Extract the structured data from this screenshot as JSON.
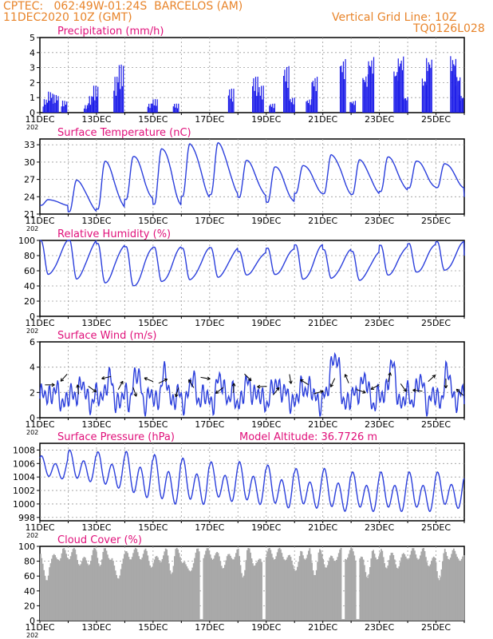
{
  "header": {
    "line1": "CPTEC:   062:49W-01:24S  BARCELOS (AM)",
    "line2": "11DEC2020 10Z (GMT)",
    "grid_note": "Vertical Grid Line: 10Z",
    "code": "TQ0126L028"
  },
  "colors": {
    "header": "#e8842a",
    "title": "#e0107a",
    "line": "#2b3fdc",
    "bars": "#1a1ae8",
    "cloud": "#a9a9a9"
  },
  "date_labels": [
    "11DEC",
    "13DEC",
    "15DEC",
    "17DEC",
    "19DEC",
    "21DEC",
    "23DEC",
    "25DEC"
  ],
  "year_fragment": "202",
  "chart_data": [
    {
      "type": "bar",
      "title": "Precipitation (mm/h)",
      "ylim": [
        0,
        5
      ],
      "yticks": [
        "0",
        "1",
        "2",
        "3",
        "4",
        "5"
      ],
      "bursts": [
        {
          "day": 0.1,
          "height": 0.9
        },
        {
          "day": 0.25,
          "height": 1.4
        },
        {
          "day": 0.45,
          "height": 1.2
        },
        {
          "day": 0.75,
          "height": 0.8
        },
        {
          "day": 1.55,
          "height": 0.5
        },
        {
          "day": 1.7,
          "height": 1.1
        },
        {
          "day": 1.85,
          "height": 1.8
        },
        {
          "day": 2.6,
          "height": 2.4
        },
        {
          "day": 2.75,
          "height": 3.2
        },
        {
          "day": 3.8,
          "height": 0.6
        },
        {
          "day": 3.95,
          "height": 0.9
        },
        {
          "day": 4.7,
          "height": 0.6
        },
        {
          "day": 6.65,
          "height": 1.6
        },
        {
          "day": 7.5,
          "height": 2.4
        },
        {
          "day": 7.7,
          "height": 1.8
        },
        {
          "day": 8.1,
          "height": 0.6
        },
        {
          "day": 8.6,
          "height": 3.1
        },
        {
          "day": 8.8,
          "height": 1.0
        },
        {
          "day": 9.4,
          "height": 0.9
        },
        {
          "day": 9.6,
          "height": 2.4
        },
        {
          "day": 10.6,
          "height": 3.6
        },
        {
          "day": 10.95,
          "height": 0.8
        },
        {
          "day": 11.4,
          "height": 2.6
        },
        {
          "day": 11.6,
          "height": 3.8
        },
        {
          "day": 12.5,
          "height": 3.0
        },
        {
          "day": 12.65,
          "height": 3.9
        },
        {
          "day": 12.8,
          "height": 1.1
        },
        {
          "day": 13.5,
          "height": 2.4
        },
        {
          "day": 13.65,
          "height": 3.8
        },
        {
          "day": 14.5,
          "height": 3.9
        },
        {
          "day": 14.65,
          "height": 2.6
        },
        {
          "day": 14.8,
          "height": 1.2
        },
        {
          "day": 15.6,
          "height": 2.2
        },
        {
          "day": 15.75,
          "height": 1.7
        },
        {
          "day": 15.9,
          "height": 0.9
        }
      ]
    },
    {
      "type": "line",
      "title": "Surface Temperature (nC)",
      "ylim": [
        21,
        34
      ],
      "yticks": [
        "21",
        "24",
        "27",
        "30",
        "33"
      ],
      "min": [
        22.5,
        21.5,
        22.0,
        23.5,
        22.5,
        24.0,
        24.5,
        24.0,
        23.0,
        24.5,
        24.5,
        24.5,
        25.0,
        25.5,
        25.5,
        24.0
      ],
      "max": [
        23.5,
        26.8,
        30.0,
        31.0,
        32.5,
        33.2,
        33.2,
        30.2,
        29.2,
        29.5,
        31.3,
        30.3,
        30.8,
        30.2,
        29.8,
        29.2
      ]
    },
    {
      "type": "line",
      "title": "Relative Humidity (%)",
      "ylim": [
        0,
        100
      ],
      "yticks": [
        "0",
        "20",
        "40",
        "60",
        "80",
        "100"
      ],
      "max": [
        100,
        100,
        95,
        92,
        92,
        90,
        90,
        85,
        90,
        95,
        88,
        85,
        93,
        96,
        99,
        80
      ],
      "min": [
        55,
        50,
        45,
        40,
        45,
        48,
        52,
        55,
        55,
        48,
        50,
        48,
        55,
        58,
        60,
        65
      ]
    },
    {
      "type": "line",
      "title": "Surface Wind (m/s)",
      "ylim": [
        0,
        6
      ],
      "yticks": [
        "0",
        "2",
        "4",
        "6"
      ],
      "daily_peak": [
        2.2,
        2.6,
        3.0,
        3.4,
        3.2,
        2.8,
        3.0,
        2.8,
        3.0,
        2.8,
        5.6,
        3.2,
        4.2,
        2.8,
        3.4,
        4.5
      ]
    },
    {
      "type": "line",
      "title": "Surface Pressure (hPa)",
      "ylim": [
        997.5,
        1009
      ],
      "yticks": [
        "998",
        "1000",
        "1002",
        "1004",
        "1006",
        "1008"
      ],
      "daily_max": [
        1007.0,
        1007.8,
        1007.5,
        1007.5,
        1007.0,
        1006.5,
        1006.0,
        1006.0,
        1005.5,
        1005.0,
        1005.0,
        1004.5,
        1004.5,
        1004.5,
        1004.5,
        1004.0
      ],
      "daily_min": [
        1003.5,
        1003.0,
        1002.0,
        1000.5,
        999.5,
        999.5,
        1000.0,
        999.5,
        999.0,
        999.0,
        998.5,
        998.5,
        998.5,
        998.5,
        999.0,
        1000.0
      ]
    },
    {
      "type": "bar",
      "title": "Cloud Cover (%)",
      "ylim": [
        0,
        100
      ],
      "yticks": [
        "0",
        "20",
        "40",
        "60",
        "80",
        "100"
      ],
      "clear_days": [
        5.7,
        7.9,
        10.7,
        11.2
      ]
    }
  ],
  "altitude_label": "Model Altitude: 36.7726 m"
}
